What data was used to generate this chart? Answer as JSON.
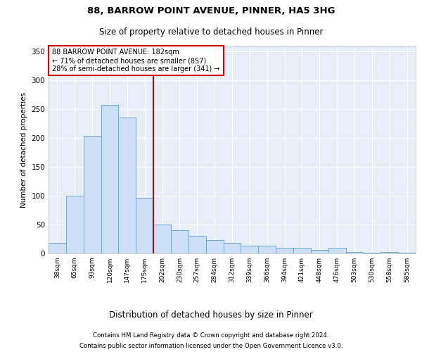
{
  "title1": "88, BARROW POINT AVENUE, PINNER, HA5 3HG",
  "title2": "Size of property relative to detached houses in Pinner",
  "xlabel": "Distribution of detached houses by size in Pinner",
  "ylabel": "Number of detached properties",
  "categories": [
    "38sqm",
    "65sqm",
    "93sqm",
    "120sqm",
    "147sqm",
    "175sqm",
    "202sqm",
    "230sqm",
    "257sqm",
    "284sqm",
    "312sqm",
    "339sqm",
    "366sqm",
    "394sqm",
    "421sqm",
    "448sqm",
    "476sqm",
    "503sqm",
    "530sqm",
    "558sqm",
    "585sqm"
  ],
  "values": [
    18,
    100,
    204,
    257,
    236,
    97,
    50,
    40,
    30,
    23,
    18,
    14,
    14,
    10,
    10,
    6,
    10,
    2,
    1,
    3,
    1
  ],
  "bar_color": "#ccdff5",
  "bar_edge_color": "#6aaad4",
  "vline_color": "#cc0000",
  "annotation_text": "88 BARROW POINT AVENUE: 182sqm\n← 71% of detached houses are smaller (857)\n28% of semi-detached houses are larger (341) →",
  "annotation_box_color": "white",
  "annotation_box_edge_color": "#cc0000",
  "footer1": "Contains HM Land Registry data © Crown copyright and database right 2024.",
  "footer2": "Contains public sector information licensed under the Open Government Licence v3.0.",
  "plot_bg_color": "#e8eef8",
  "grid_color": "#ffffff",
  "ylim": [
    0,
    360
  ],
  "yticks": [
    0,
    50,
    100,
    150,
    200,
    250,
    300,
    350
  ],
  "vline_pos": 5.5
}
